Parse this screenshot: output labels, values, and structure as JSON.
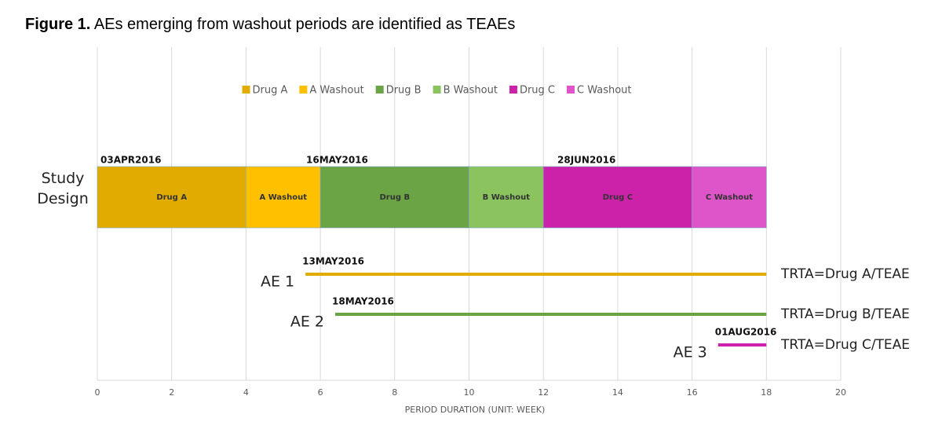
{
  "chart_data": {
    "type": "gantt",
    "title_prefix": "Figure 1.",
    "title": "AEs emerging from washout periods are identified as TEAEs",
    "x_label": "PERIOD DURATION (UNIT: WEEK)",
    "xlim": [
      0,
      20
    ],
    "xticks": [
      0,
      2,
      4,
      6,
      8,
      10,
      12,
      14,
      16,
      18,
      20
    ],
    "grid": true,
    "design_label": "Study Design",
    "segments": [
      {
        "name": "Drug A",
        "start": 0,
        "end": 4,
        "color": "#e2ab00"
      },
      {
        "name": "A Washout",
        "start": 4,
        "end": 6,
        "color": "#ffc000"
      },
      {
        "name": "Drug B",
        "start": 6,
        "end": 10,
        "color": "#6aa444"
      },
      {
        "name": "B Washout",
        "start": 10,
        "end": 12,
        "color": "#8bc45f"
      },
      {
        "name": "Drug C",
        "start": 12,
        "end": 16,
        "color": "#cc22aa"
      },
      {
        "name": "C Washout",
        "start": 16,
        "end": 18,
        "color": "#dd55c8"
      }
    ],
    "date_labels": [
      "03APR2016",
      "16MAY2016",
      "28JUN2016"
    ],
    "events": [
      {
        "name": "AE 1",
        "start": 5.6,
        "end": 18,
        "color": "#e2ab00",
        "date": "13MAY2016",
        "outcome": "TRTA=Drug A/TEAE"
      },
      {
        "name": "AE 2",
        "start": 6.4,
        "end": 18,
        "color": "#6aa444",
        "date": "18MAY2016",
        "outcome": "TRTA=Drug B/TEAE"
      },
      {
        "name": "AE 3",
        "start": 16.7,
        "end": 18,
        "color": "#cc22aa",
        "date": "01AUG2016",
        "outcome": "TRTA=Drug C/TEAE"
      }
    ]
  }
}
